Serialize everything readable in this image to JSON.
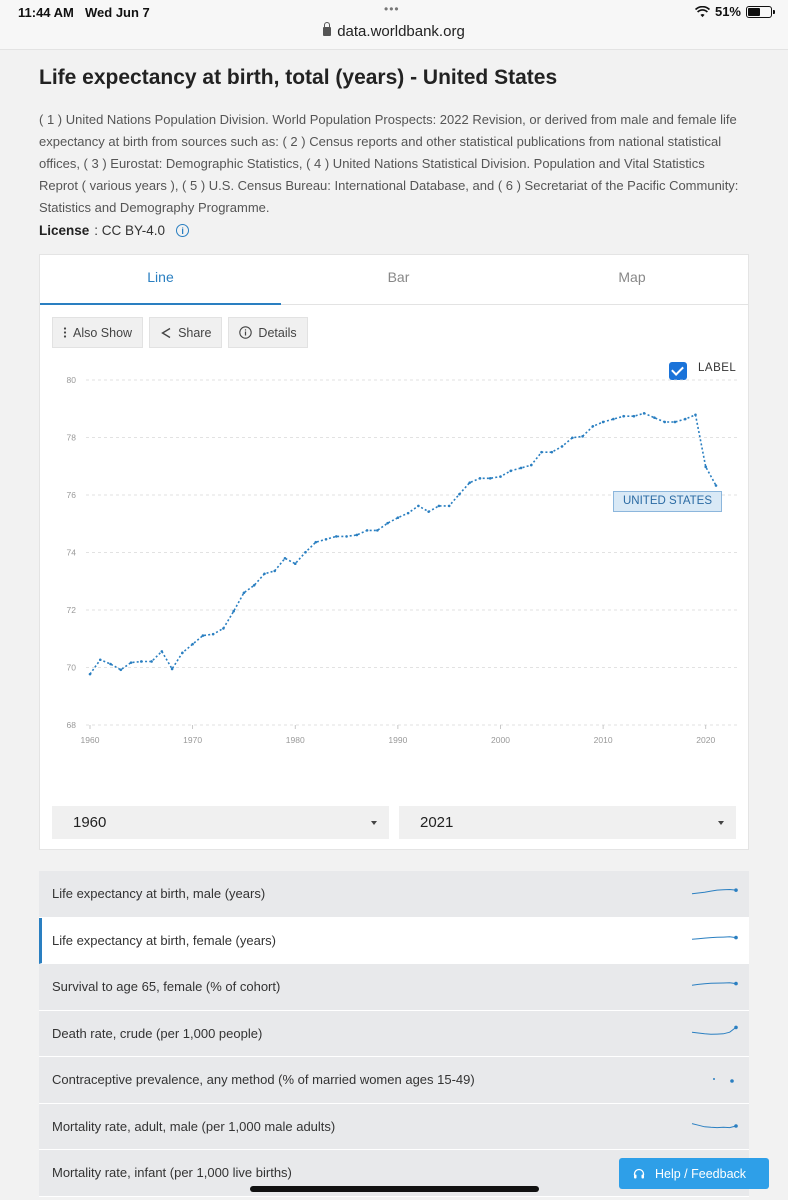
{
  "status_bar": {
    "time": "11:44 AM",
    "date": "Wed Jun 7",
    "dots": "•••",
    "url": "data.worldbank.org",
    "battery": "51%"
  },
  "page": {
    "title": "Life expectancy at birth, total (years) - United States",
    "source": "( 1 ) United Nations Population Division. World Population Prospects: 2022 Revision, or derived from male and female life expectancy at birth from sources such as: ( 2 ) Census reports and other statistical publications from national statistical offices, ( 3 ) Eurostat: Demographic Statistics, ( 4 ) United Nations Statistical Division. Population and Vital Statistics Reprot ( various years ), ( 5 ) U.S. Census Bureau: International Database, and ( 6 ) Secretariat of the Pacific Community: Statistics and Demography Programme.",
    "license_label": "License",
    "license_value": ": CC BY-4.0"
  },
  "tabs": [
    {
      "label": "Line",
      "active": true
    },
    {
      "label": "Bar",
      "active": false
    },
    {
      "label": "Map",
      "active": false
    }
  ],
  "toolbar": {
    "also_show": "Also Show",
    "share": "Share",
    "details": "Details"
  },
  "label_toggle": {
    "text": "LABEL",
    "checked": true
  },
  "chart_data": {
    "type": "line",
    "series": [
      {
        "name": "UNITED STATES",
        "color": "#2a7fc1",
        "x": [
          1960,
          1961,
          1962,
          1963,
          1964,
          1965,
          1966,
          1967,
          1968,
          1969,
          1970,
          1971,
          1972,
          1973,
          1974,
          1975,
          1976,
          1977,
          1978,
          1979,
          1980,
          1981,
          1982,
          1983,
          1984,
          1985,
          1986,
          1987,
          1988,
          1989,
          1990,
          1991,
          1992,
          1993,
          1994,
          1995,
          1996,
          1997,
          1998,
          1999,
          2000,
          2001,
          2002,
          2003,
          2004,
          2005,
          2006,
          2007,
          2008,
          2009,
          2010,
          2011,
          2012,
          2013,
          2014,
          2015,
          2016,
          2017,
          2018,
          2019,
          2020,
          2021
        ],
        "values": [
          69.77,
          70.27,
          70.12,
          69.92,
          70.17,
          70.21,
          70.21,
          70.56,
          69.95,
          70.51,
          70.81,
          71.11,
          71.16,
          71.36,
          71.96,
          72.6,
          72.86,
          73.26,
          73.36,
          73.8,
          73.61,
          74.01,
          74.36,
          74.46,
          74.56,
          74.56,
          74.61,
          74.77,
          74.77,
          75.02,
          75.21,
          75.37,
          75.62,
          75.42,
          75.62,
          75.62,
          76.03,
          76.43,
          76.58,
          76.58,
          76.64,
          76.84,
          76.94,
          77.04,
          77.49,
          77.49,
          77.69,
          77.99,
          78.04,
          78.39,
          78.54,
          78.64,
          78.74,
          78.74,
          78.84,
          78.69,
          78.54,
          78.54,
          78.64,
          78.79,
          76.98,
          76.33
        ]
      }
    ],
    "xticks": [
      "1960",
      "1970",
      "1980",
      "1990",
      "2000",
      "2010",
      "2020"
    ],
    "yticks": [
      "68",
      "70",
      "72",
      "74",
      "76",
      "78",
      "80"
    ],
    "xlim": [
      1960,
      2021
    ],
    "ylim": [
      68,
      80
    ],
    "grid": true,
    "label": "UNITED STATES"
  },
  "range": {
    "start": "1960",
    "end": "2021"
  },
  "indicators": [
    {
      "label": "Life expectancy at birth, male (years)",
      "active": false,
      "spark": [
        0.55,
        0.5,
        0.45,
        0.38,
        0.32,
        0.3,
        0.28,
        0.32
      ]
    },
    {
      "label": "Life expectancy at birth, female (years)",
      "active": true,
      "spark": [
        0.45,
        0.42,
        0.38,
        0.35,
        0.33,
        0.32,
        0.3,
        0.35
      ]
    },
    {
      "label": "Survival to age 65, female (% of cohort)",
      "active": false,
      "spark": [
        0.45,
        0.4,
        0.36,
        0.33,
        0.32,
        0.31,
        0.3,
        0.35
      ]
    },
    {
      "label": "Death rate, crude (per 1,000 people)",
      "active": false,
      "spark": [
        0.45,
        0.5,
        0.55,
        0.58,
        0.57,
        0.55,
        0.45,
        0.15
      ]
    },
    {
      "label": "Contraceptive prevalence, any method (% of married women ages 15-49)",
      "active": false,
      "spark": []
    },
    {
      "label": "Mortality rate, adult, male (per 1,000 male adults)",
      "active": false,
      "spark": [
        0.35,
        0.45,
        0.55,
        0.58,
        0.6,
        0.58,
        0.6,
        0.5
      ]
    },
    {
      "label": "Mortality rate, infant (per 1,000 live births)",
      "active": false,
      "spark": []
    }
  ],
  "help_button": "Help / Feedback"
}
